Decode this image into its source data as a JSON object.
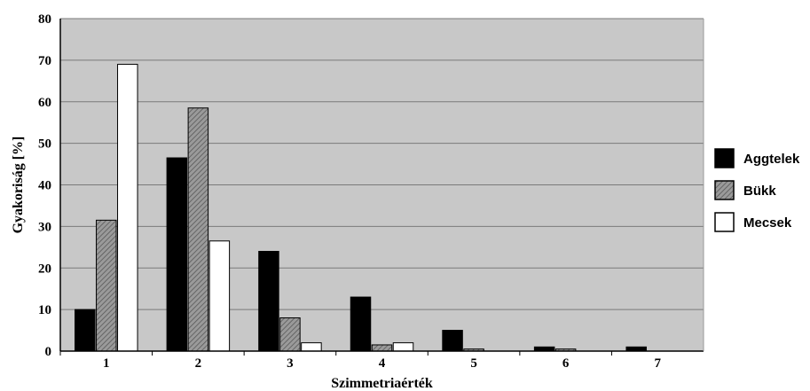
{
  "chart_data": {
    "type": "bar",
    "title": "",
    "xlabel": "Szimmetriaérték",
    "ylabel": "Gyakoriság [%]",
    "categories": [
      "1",
      "2",
      "3",
      "4",
      "5",
      "6",
      "7"
    ],
    "ylim": [
      0,
      80
    ],
    "yticks": [
      0,
      10,
      20,
      30,
      40,
      50,
      60,
      70,
      80
    ],
    "grid": true,
    "legend_position": "right",
    "series": [
      {
        "name": "Aggtelek",
        "fill": "#000000",
        "values": [
          10,
          46.5,
          24,
          13,
          5,
          1,
          1
        ]
      },
      {
        "name": "Bükk",
        "fill": "#8c8c8c",
        "hatched": true,
        "values": [
          31.5,
          58.5,
          8,
          1.5,
          0.5,
          0.5,
          0
        ]
      },
      {
        "name": "Mecsek",
        "fill": "#ffffff",
        "values": [
          69,
          26.5,
          2,
          2,
          0,
          0,
          0
        ]
      }
    ],
    "plot_background": "#c8c8c8"
  }
}
